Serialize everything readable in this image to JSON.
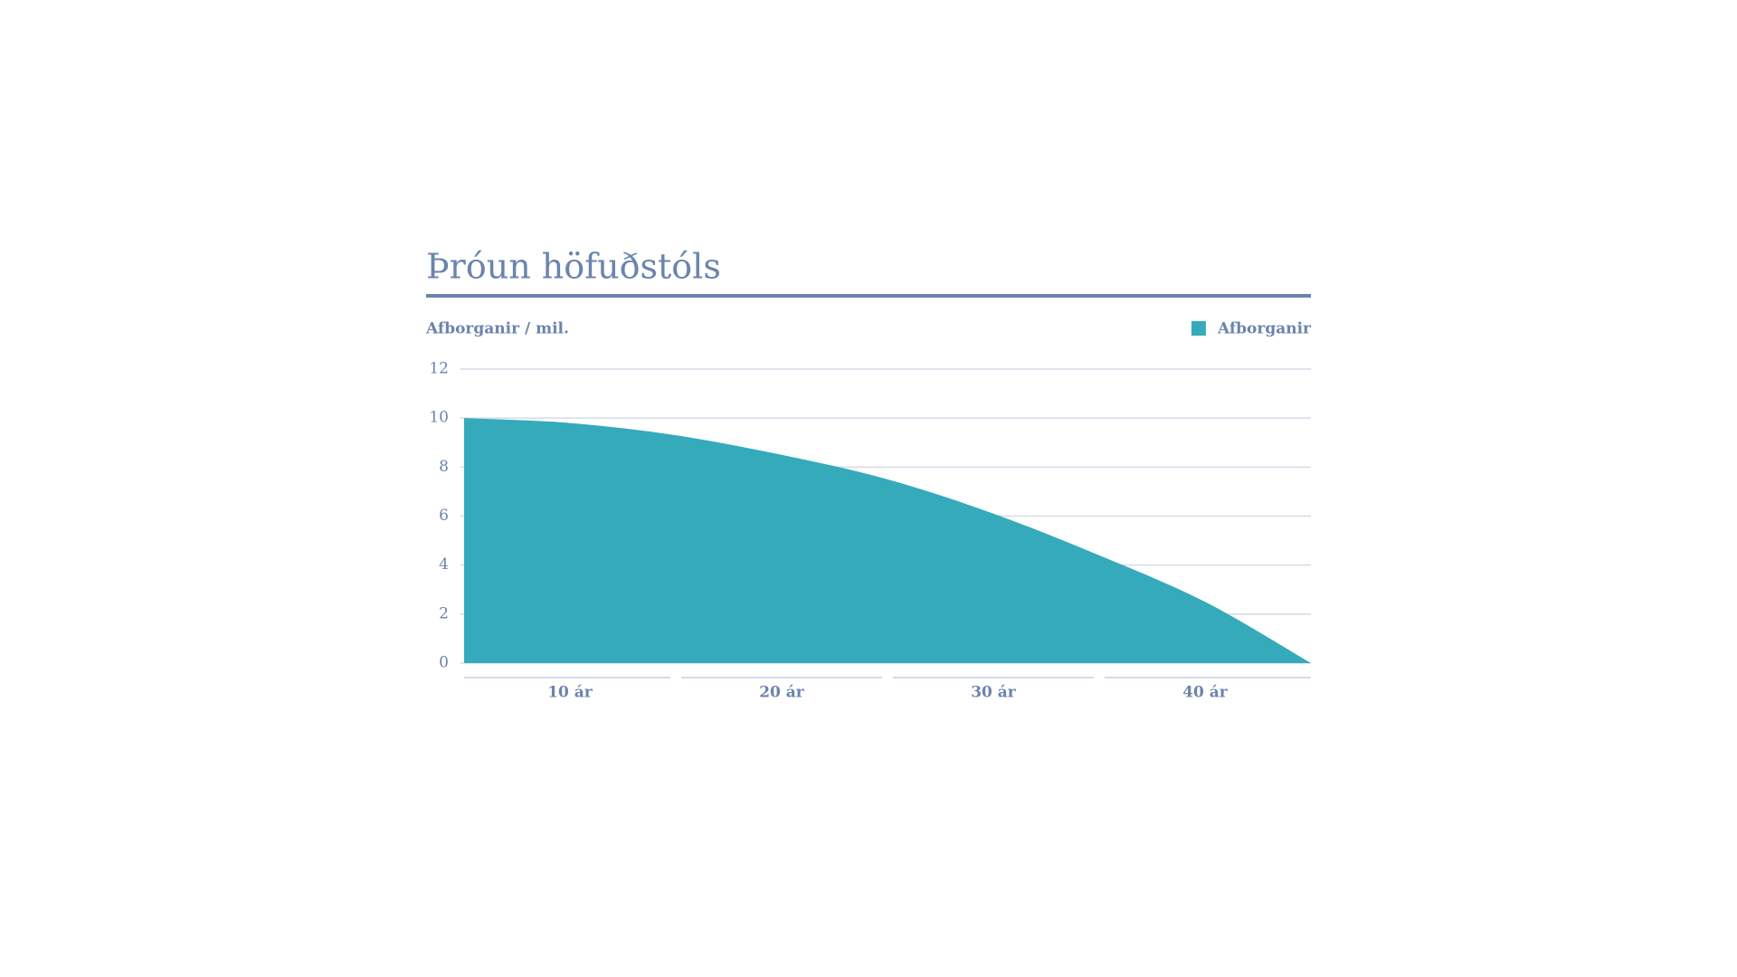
{
  "chart_data": {
    "type": "area",
    "title": "Þróun höfuðstóls",
    "y_label": "Afborganir / mil.",
    "categories": [
      "10 ár",
      "20 ár",
      "30 ár",
      "40 ár"
    ],
    "x": [
      0,
      5,
      10,
      15,
      20,
      25,
      30,
      35,
      40
    ],
    "xlim": [
      0,
      40
    ],
    "series": [
      {
        "name": "Afborganir",
        "color": "#35aabb",
        "values": [
          10,
          9.8,
          9.3,
          8.5,
          7.5,
          6.1,
          4.4,
          2.5,
          0
        ]
      }
    ],
    "ylim": [
      0,
      12
    ],
    "yticks": [
      0,
      2,
      4,
      6,
      8,
      10,
      12
    ],
    "grid": true,
    "legend": "top-right"
  }
}
